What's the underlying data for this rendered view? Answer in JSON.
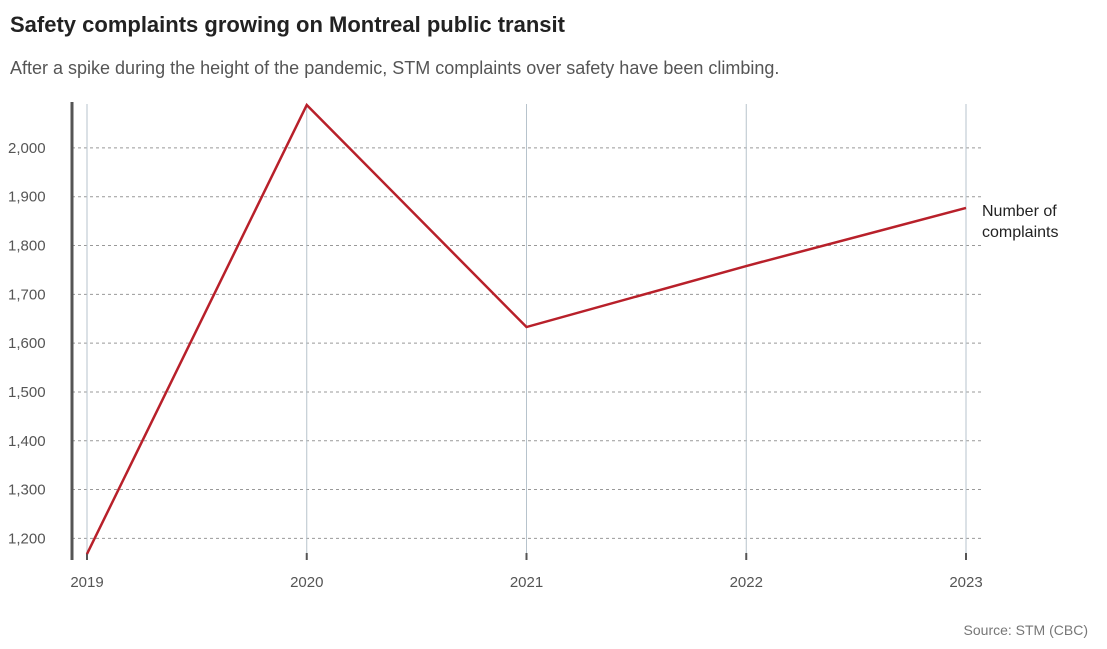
{
  "header": {
    "title": "Safety complaints growing on Montreal public transit",
    "subtitle": "After a spike during the height of the pandemic, STM complaints over safety have been climbing."
  },
  "footer": {
    "source": "Source: STM (CBC)"
  },
  "colors": {
    "line": "#b8202a",
    "grid": "#999999",
    "vgrid": "#b7c3cc",
    "axis": "#555555"
  },
  "chart_data": {
    "type": "line",
    "title": "Safety complaints growing on Montreal public transit",
    "subtitle": "After a spike during the height of the pandemic, STM complaints over safety have been climbing.",
    "xlabel": "",
    "ylabel": "",
    "x": [
      "2019",
      "2020",
      "2021",
      "2022",
      "2023"
    ],
    "series": [
      {
        "name": "Number of complaints",
        "values": [
          1168,
          2088,
          1633,
          1758,
          1877
        ]
      }
    ],
    "yticks": [
      1200,
      1300,
      1400,
      1500,
      1600,
      1700,
      1800,
      1900,
      2000
    ],
    "ytick_labels": [
      "1,200",
      "1,300",
      "1,400",
      "1,500",
      "1,600",
      "1,700",
      "1,800",
      "1,900",
      "2,000"
    ],
    "ylim": [
      1170,
      2090
    ],
    "grid": true,
    "legend": "direct label at line end (right)"
  }
}
